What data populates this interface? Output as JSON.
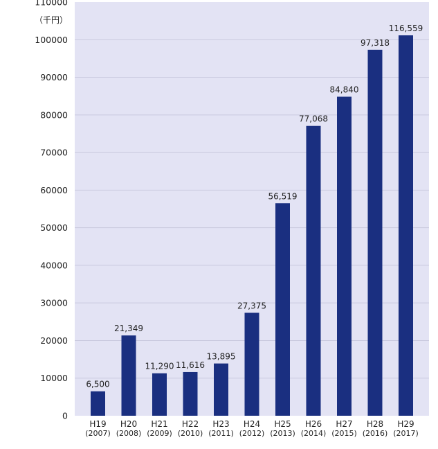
{
  "colors": {
    "plot_background": "#e3e3f4",
    "grid_line": "#c9c9de",
    "bar": "#1a2f80"
  },
  "chart_data": {
    "type": "bar",
    "unit": "（千円）",
    "categories": [
      "H19",
      "H20",
      "H21",
      "H22",
      "H23",
      "H24",
      "H25",
      "H26",
      "H27",
      "H28",
      "H29"
    ],
    "category_years": [
      "(2007)",
      "(2008)",
      "(2009)",
      "(2010)",
      "(2011)",
      "(2012)",
      "(2013)",
      "(2014)",
      "(2015)",
      "(2016)",
      "(2017)"
    ],
    "values": [
      6500,
      21349,
      11290,
      11616,
      13895,
      27375,
      56519,
      77068,
      84840,
      97318,
      116559
    ],
    "value_labels": [
      "6,500",
      "21,349",
      "11,290",
      "11,616",
      "13,895",
      "27,375",
      "56,519",
      "77,068",
      "84,840",
      "97,318",
      "116,559"
    ],
    "ylim": [
      0,
      110000
    ],
    "yticks": [
      0,
      10000,
      20000,
      30000,
      40000,
      50000,
      60000,
      70000,
      80000,
      90000,
      100000,
      110000
    ],
    "ytick_labels": [
      "0",
      "10000",
      "20000",
      "30000",
      "40000",
      "50000",
      "60000",
      "70000",
      "80000",
      "90000",
      "100000",
      "110000"
    ],
    "grid": true,
    "legend": "none"
  }
}
